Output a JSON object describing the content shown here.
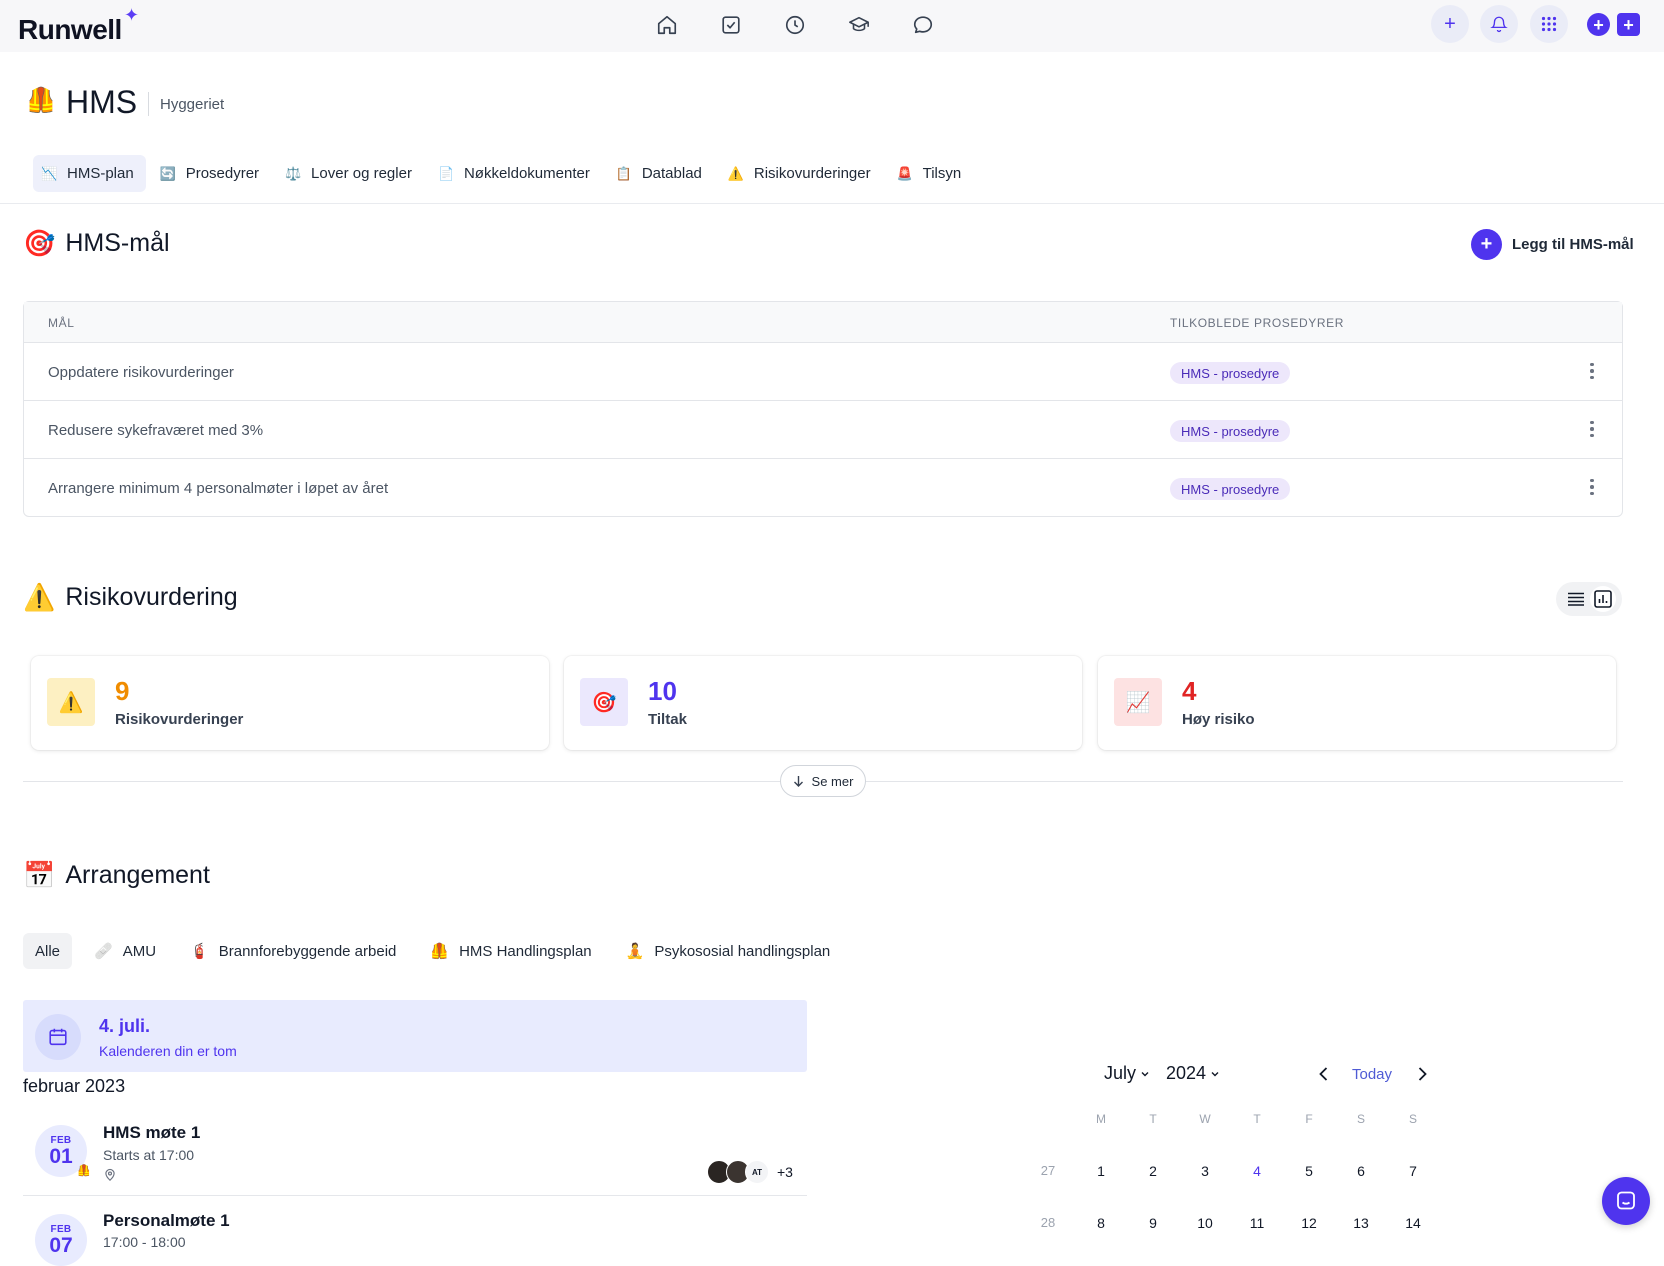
{
  "app": {
    "logo": "Runwell",
    "logo_star": "✦"
  },
  "topnav": {
    "icons": [
      "home-icon",
      "tasks-icon",
      "clock-icon",
      "education-icon",
      "chat-icon"
    ]
  },
  "header_actions": {
    "add": "+",
    "mini_a": "+",
    "mini_b": "+"
  },
  "page": {
    "emoji": "🦺",
    "title": "HMS",
    "subtitle": "Hyggeriet"
  },
  "tabs": [
    {
      "icon": "📉",
      "label": "HMS-plan",
      "active": true
    },
    {
      "icon": "🔄",
      "label": "Prosedyrer"
    },
    {
      "icon": "⚖️",
      "label": "Lover og regler"
    },
    {
      "icon": "📄",
      "label": "Nøkkeldokumenter"
    },
    {
      "icon": "📋",
      "label": "Datablad"
    },
    {
      "icon": "⚠️",
      "label": "Risikovurderinger"
    },
    {
      "icon": "🚨",
      "label": "Tilsyn"
    }
  ],
  "goals": {
    "emoji": "🎯",
    "title": "HMS-mål",
    "add_label": "Legg til HMS-mål",
    "add_plus": "+",
    "col_goal": "MÅL",
    "col_proc": "TILKOBLEDE PROSEDYRER",
    "rows": [
      {
        "goal": "Oppdatere risikovurderinger",
        "procedure": "HMS - prosedyre"
      },
      {
        "goal": "Redusere sykefraværet med 3%",
        "procedure": "HMS - prosedyre"
      },
      {
        "goal": "Arrangere minimum 4 personalmøter i løpet av året",
        "procedure": "HMS - prosedyre"
      }
    ]
  },
  "risk": {
    "emoji": "⚠️",
    "title": "Risikovurdering",
    "stats": [
      {
        "icon": "⚠️",
        "value": "9",
        "label": "Risikovurderinger",
        "color": "#f08c00",
        "bg": "#fdf0c2"
      },
      {
        "icon": "🎯",
        "value": "10",
        "label": "Tiltak",
        "color": "#4f34ee",
        "bg": "#ebe8fd"
      },
      {
        "icon": "📈",
        "value": "4",
        "label": "Høy risiko",
        "color": "#e02424",
        "bg": "#fde2e2"
      }
    ],
    "see_more": "Se mer"
  },
  "events": {
    "emoji": "📅",
    "title": "Arrangement",
    "filters": [
      {
        "icon": "",
        "label": "Alle",
        "active": true
      },
      {
        "icon": "🩹",
        "label": "AMU"
      },
      {
        "icon": "🧯",
        "label": "Brannforebyggende arbeid"
      },
      {
        "icon": "🦺",
        "label": "HMS Handlingsplan"
      },
      {
        "icon": "🧘",
        "label": "Psykososial handlingsplan"
      }
    ],
    "today": {
      "date": "4. juli.",
      "text": "Kalenderen din er tom"
    },
    "month": "februar 2023",
    "list": [
      {
        "mon": "FEB",
        "day": "01",
        "title": "HMS møte 1",
        "time": "Starts at 17:00",
        "badge": "🦺",
        "av_initials": "AT",
        "more": "+3"
      },
      {
        "mon": "FEB",
        "day": "07",
        "title": "Personalmøte 1",
        "time": "17:00 - 18:00"
      }
    ]
  },
  "calendar": {
    "month": "July",
    "year": "2024",
    "today_label": "Today",
    "dow": [
      "M",
      "T",
      "W",
      "T",
      "F",
      "S",
      "S"
    ],
    "weeks": [
      [
        "27",
        "1",
        "2",
        "3",
        "4",
        "5",
        "6",
        "7"
      ],
      [
        "28",
        "8",
        "9",
        "10",
        "11",
        "12",
        "13",
        "14"
      ]
    ],
    "today_day": "4"
  },
  "colors": {
    "accent": "#4f34ee",
    "pill_bg": "#ede7fb",
    "pill_text": "#4a2bb8"
  }
}
